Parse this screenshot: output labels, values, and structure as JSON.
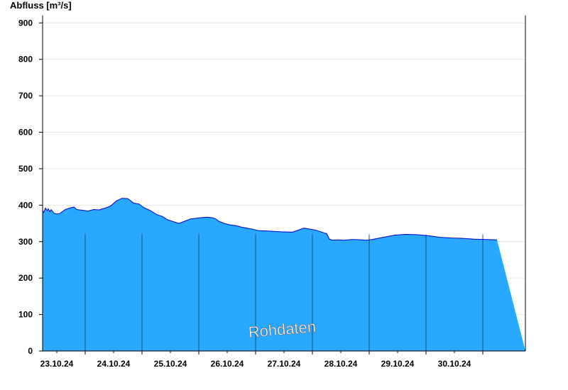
{
  "chart_data": {
    "type": "area",
    "ylabel": "Abfluss [m³/s]",
    "ylim": [
      0,
      920
    ],
    "yticks": [
      0,
      100,
      200,
      300,
      400,
      500,
      600,
      700,
      800,
      900
    ],
    "xlim": [
      "22.10.24 18:00",
      "31.10.24 06:00"
    ],
    "xtick_labels": [
      "23.10.24",
      "24.10.24",
      "25.10.24",
      "26.10.24",
      "27.10.24",
      "28.10.24",
      "29.10.24",
      "30.10.24"
    ],
    "grid": true,
    "watermark": "Rohdaten",
    "colors": {
      "fill": "#29a8ff",
      "line": "#0000cc",
      "divider": "#1a4f7a",
      "grid": "#e6e6e6"
    },
    "series": [
      {
        "x_days_from_start": [
          0,
          0.02,
          0.05,
          0.08,
          0.1,
          0.13,
          0.15,
          0.2,
          0.25,
          0.3,
          0.4,
          0.5,
          0.55,
          0.6,
          0.7,
          0.8,
          0.9,
          1.0,
          1.05,
          1.1,
          1.2,
          1.3,
          1.4,
          1.5,
          1.55,
          1.6,
          1.7,
          1.75,
          1.8,
          1.9,
          2.0,
          2.05,
          2.1,
          2.2,
          2.4,
          2.6,
          2.75,
          2.9,
          3.0,
          3.05,
          3.1,
          3.2,
          3.3,
          3.4,
          3.5,
          3.6,
          3.7,
          3.8,
          4.0,
          4.2,
          4.4,
          4.6,
          4.8,
          5.0,
          5.05,
          5.1,
          5.2,
          5.3,
          5.45,
          5.5,
          5.6,
          5.7,
          5.8,
          6.0,
          6.2,
          6.4,
          6.6,
          6.8,
          7.0,
          7.2,
          7.4,
          7.6,
          7.8,
          8.0
        ],
        "values": [
          385,
          380,
          392,
          385,
          390,
          382,
          388,
          378,
          376,
          377,
          388,
          393,
          395,
          388,
          386,
          384,
          388,
          387,
          390,
          392,
          398,
          412,
          419,
          418,
          412,
          406,
          403,
          397,
          392,
          385,
          375,
          372,
          370,
          360,
          350,
          362,
          365,
          367,
          365,
          362,
          356,
          350,
          346,
          344,
          340,
          337,
          334,
          330,
          329,
          327,
          326,
          337,
          332,
          322,
          307,
          304,
          305,
          304,
          306,
          306,
          305,
          304,
          306,
          312,
          318,
          320,
          319,
          316,
          312,
          310,
          309,
          307,
          306,
          305
        ]
      }
    ]
  }
}
